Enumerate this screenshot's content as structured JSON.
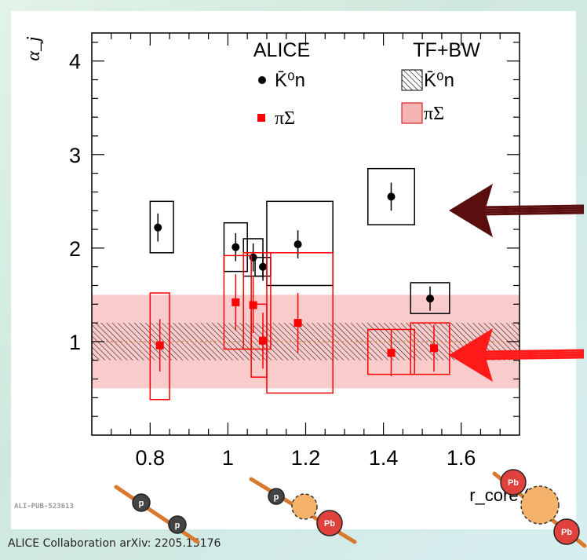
{
  "credit": "ALICE Collaboration arXiv: 2205.15176",
  "figure_id": "ALI-PUB-523613",
  "legend": {
    "data_title": "ALICE",
    "model_title": "TF+BW",
    "k0n_label": "K̄⁰n",
    "pisigma_label": "πΣ"
  },
  "particles": {
    "proton": "p",
    "lead": "Pb"
  },
  "colors": {
    "k0n": "#000000",
    "pisigma": "#ff0000",
    "band_pisigma": "#f6b5b5",
    "arrow_dark": "#5a0e0e",
    "arrow_red": "#ff1a1a",
    "nucleus_orange": "#f4b26a",
    "proton_gray": "#444444",
    "lead_red": "#e0413c",
    "rod_orange": "#d9782e"
  },
  "chart_data": {
    "type": "scatter",
    "xlabel": "r_core (fm)",
    "ylabel": "α_j",
    "xlim": [
      0.65,
      1.75
    ],
    "ylim": [
      0.0,
      4.3
    ],
    "x_ticks": [
      "0.8",
      "1",
      "1.2",
      "1.4",
      "1.6"
    ],
    "y_ticks": [
      "1",
      "2",
      "3",
      "4"
    ],
    "series": [
      {
        "name": "K̄⁰n",
        "marker": "circle",
        "points": [
          {
            "x": 0.82,
            "y": 2.22,
            "stat": 0.15,
            "sys_x": [
              0.8,
              0.86
            ],
            "sys_y": [
              1.95,
              2.5
            ]
          },
          {
            "x": 1.02,
            "y": 2.01,
            "stat": 0.15,
            "sys_x": [
              0.99,
              1.05
            ],
            "sys_y": [
              1.75,
              2.27
            ]
          },
          {
            "x": 1.065,
            "y": 1.9,
            "stat": 0.15,
            "sys_x": [
              1.04,
              1.09
            ],
            "sys_y": [
              1.7,
              2.1
            ]
          },
          {
            "x": 1.09,
            "y": 1.8,
            "stat": 0.15,
            "sys_x": [
              1.07,
              1.11
            ],
            "sys_y": [
              1.7,
              1.9
            ]
          },
          {
            "x": 1.18,
            "y": 2.04,
            "stat": 0.15,
            "sys_x": [
              1.1,
              1.27
            ],
            "sys_y": [
              1.6,
              2.5
            ]
          },
          {
            "x": 1.42,
            "y": 2.55,
            "stat": 0.15,
            "sys_x": [
              1.36,
              1.48
            ],
            "sys_y": [
              2.25,
              2.85
            ]
          },
          {
            "x": 1.52,
            "y": 1.46,
            "stat": 0.13,
            "sys_x": [
              1.47,
              1.57
            ],
            "sys_y": [
              1.3,
              1.63
            ]
          }
        ]
      },
      {
        "name": "πΣ",
        "marker": "square",
        "points": [
          {
            "x": 0.825,
            "y": 0.96,
            "stat": 0.28,
            "sys_x": [
              0.8,
              0.85
            ],
            "sys_y": [
              0.38,
              1.52
            ]
          },
          {
            "x": 1.02,
            "y": 1.42,
            "stat": 0.3,
            "sys_x": [
              0.99,
              1.06
            ],
            "sys_y": [
              0.92,
              1.92
            ]
          },
          {
            "x": 1.065,
            "y": 1.39,
            "stat": 0.3,
            "sys_x": [
              1.04,
              1.11
            ],
            "sys_y": [
              0.92,
              1.95
            ]
          },
          {
            "x": 1.09,
            "y": 1.01,
            "stat": 0.3,
            "sys_x": [
              1.06,
              1.1
            ],
            "sys_y": [
              0.62,
              1.4
            ]
          },
          {
            "x": 1.18,
            "y": 1.2,
            "stat": 0.32,
            "sys_x": [
              1.1,
              1.27
            ],
            "sys_y": [
              0.45,
              1.95
            ]
          },
          {
            "x": 1.42,
            "y": 0.88,
            "stat": 0.25,
            "sys_x": [
              1.36,
              1.48
            ],
            "sys_y": [
              0.65,
              1.13
            ]
          },
          {
            "x": 1.53,
            "y": 0.93,
            "stat": 0.25,
            "sys_x": [
              1.47,
              1.57
            ],
            "sys_y": [
              0.65,
              1.2
            ]
          }
        ]
      }
    ],
    "bands": [
      {
        "name": "TF+BW πΣ",
        "y_range": [
          0.5,
          1.5
        ],
        "style": "red-fill"
      },
      {
        "name": "TF+BW K̄⁰n",
        "y_range": [
          0.8,
          1.2
        ],
        "style": "hatch"
      }
    ],
    "reference_line": 1.0
  }
}
